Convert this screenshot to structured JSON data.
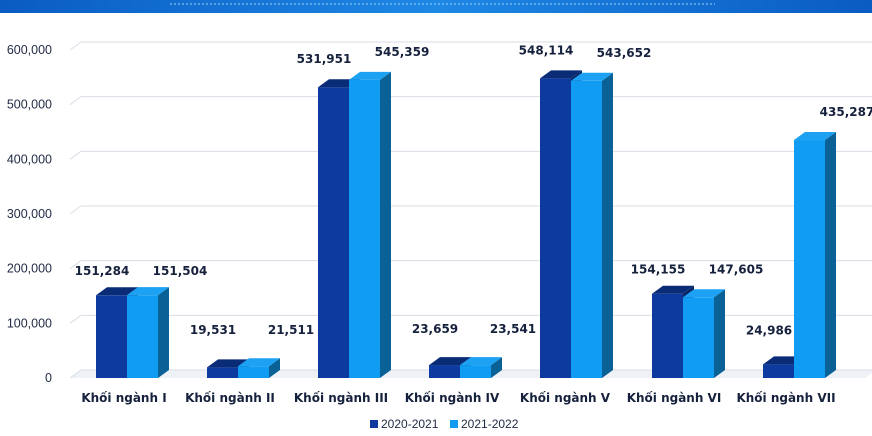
{
  "chart_data": {
    "type": "bar",
    "style": "3d-clustered-column",
    "categories": [
      "Khối ngành I",
      "Khối ngành II",
      "Khối ngành III",
      "Khối ngành IV",
      "Khối ngành V",
      "Khối ngành VI",
      "Khối ngành VII"
    ],
    "series": [
      {
        "name": "2020-2021",
        "color": "#0d3a9e",
        "values": [
          151284,
          19531,
          531951,
          23659,
          548114,
          154155,
          24986
        ],
        "labels": [
          "151,284",
          "19,531",
          "531,951",
          "23,659",
          "548,114",
          "154,155",
          "24,986"
        ]
      },
      {
        "name": "2021-2022",
        "color": "#109cf2",
        "values": [
          151504,
          21511,
          545359,
          23541,
          543652,
          147605,
          435287
        ],
        "labels": [
          "151,504",
          "21,511",
          "545,359",
          "23,541",
          "543,652",
          "147,605",
          "435,287"
        ]
      }
    ],
    "y_ticks": [
      "0",
      "100,000",
      "200,000",
      "300,000",
      "400,000",
      "500,000",
      "600,000"
    ],
    "ylim": [
      0,
      600000
    ],
    "grid": true,
    "legend_position": "bottom-center",
    "top_band_color": "#1478d4"
  }
}
